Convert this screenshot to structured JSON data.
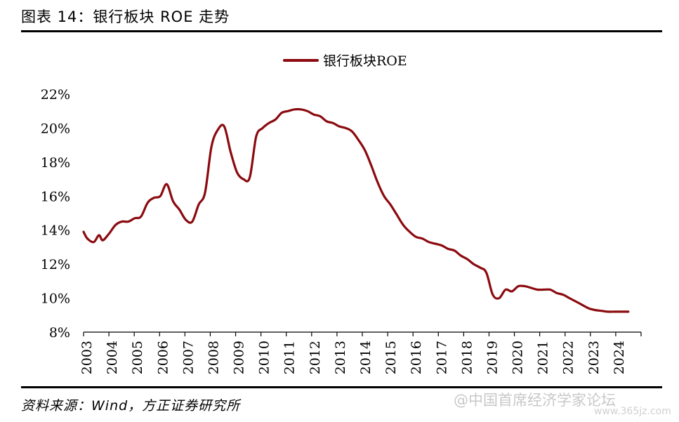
{
  "header": {
    "title": "图表 14：银行板块 ROE 走势"
  },
  "footer": {
    "source": "资料来源：Wind，方正证券研究所"
  },
  "watermark": {
    "text": "@中国首席经济学家论坛",
    "url": "www.365jz.com"
  },
  "chart_data": {
    "type": "line",
    "title": "图表 14：银行板块 ROE 走势",
    "xlabel": "",
    "ylabel": "",
    "legend_position": "top-center",
    "grid": false,
    "xlim": [
      2003.0,
      2024.8
    ],
    "ylim": [
      8,
      22
    ],
    "x_ticks": [
      "2003",
      "2004",
      "2005",
      "2006",
      "2007",
      "2008",
      "2009",
      "2010",
      "2011",
      "2012",
      "2013",
      "2014",
      "2015",
      "2016",
      "2017",
      "2018",
      "2019",
      "2020",
      "2021",
      "2022",
      "2023",
      "2024"
    ],
    "y_ticks": [
      "8%",
      "10%",
      "12%",
      "14%",
      "16%",
      "18%",
      "20%",
      "22%"
    ],
    "y_tick_values": [
      8,
      10,
      12,
      14,
      16,
      18,
      20,
      22
    ],
    "series": [
      {
        "name": "银行板块ROE",
        "color": "#8b0a0f",
        "points": [
          [
            2003.0,
            13.9
          ],
          [
            2003.15,
            13.5
          ],
          [
            2003.4,
            13.3
          ],
          [
            2003.6,
            13.7
          ],
          [
            2003.75,
            13.4
          ],
          [
            2004.0,
            13.8
          ],
          [
            2004.25,
            14.3
          ],
          [
            2004.5,
            14.5
          ],
          [
            2004.75,
            14.5
          ],
          [
            2005.0,
            14.7
          ],
          [
            2005.25,
            14.8
          ],
          [
            2005.5,
            15.6
          ],
          [
            2005.75,
            15.9
          ],
          [
            2006.0,
            16.0
          ],
          [
            2006.25,
            16.7
          ],
          [
            2006.5,
            15.7
          ],
          [
            2006.75,
            15.2
          ],
          [
            2007.0,
            14.6
          ],
          [
            2007.25,
            14.5
          ],
          [
            2007.5,
            15.5
          ],
          [
            2007.75,
            16.2
          ],
          [
            2008.0,
            18.9
          ],
          [
            2008.25,
            19.9
          ],
          [
            2008.5,
            20.1
          ],
          [
            2008.75,
            18.6
          ],
          [
            2009.0,
            17.4
          ],
          [
            2009.25,
            17.0
          ],
          [
            2009.5,
            17.1
          ],
          [
            2009.75,
            19.5
          ],
          [
            2010.0,
            20.0
          ],
          [
            2010.25,
            20.3
          ],
          [
            2010.5,
            20.5
          ],
          [
            2010.75,
            20.9
          ],
          [
            2011.0,
            21.0
          ],
          [
            2011.25,
            21.1
          ],
          [
            2011.5,
            21.1
          ],
          [
            2011.75,
            21.0
          ],
          [
            2012.0,
            20.8
          ],
          [
            2012.25,
            20.7
          ],
          [
            2012.5,
            20.4
          ],
          [
            2012.75,
            20.3
          ],
          [
            2013.0,
            20.1
          ],
          [
            2013.25,
            20.0
          ],
          [
            2013.5,
            19.8
          ],
          [
            2013.75,
            19.3
          ],
          [
            2014.0,
            18.7
          ],
          [
            2014.25,
            17.8
          ],
          [
            2014.5,
            16.8
          ],
          [
            2014.75,
            16.0
          ],
          [
            2015.0,
            15.5
          ],
          [
            2015.25,
            14.9
          ],
          [
            2015.5,
            14.3
          ],
          [
            2015.75,
            13.9
          ],
          [
            2016.0,
            13.6
          ],
          [
            2016.25,
            13.5
          ],
          [
            2016.5,
            13.3
          ],
          [
            2016.75,
            13.2
          ],
          [
            2017.0,
            13.1
          ],
          [
            2017.25,
            12.9
          ],
          [
            2017.5,
            12.8
          ],
          [
            2017.75,
            12.5
          ],
          [
            2018.0,
            12.3
          ],
          [
            2018.25,
            12.0
          ],
          [
            2018.5,
            11.8
          ],
          [
            2018.75,
            11.5
          ],
          [
            2019.0,
            10.2
          ],
          [
            2019.25,
            10.0
          ],
          [
            2019.5,
            10.5
          ],
          [
            2019.75,
            10.4
          ],
          [
            2020.0,
            10.7
          ],
          [
            2020.25,
            10.7
          ],
          [
            2020.5,
            10.6
          ],
          [
            2020.75,
            10.5
          ],
          [
            2021.0,
            10.5
          ],
          [
            2021.25,
            10.5
          ],
          [
            2021.5,
            10.3
          ],
          [
            2021.75,
            10.2
          ],
          [
            2022.0,
            10.0
          ],
          [
            2022.25,
            9.8
          ],
          [
            2022.5,
            9.6
          ],
          [
            2022.75,
            9.4
          ],
          [
            2023.0,
            9.3
          ],
          [
            2023.25,
            9.25
          ],
          [
            2023.5,
            9.2
          ],
          [
            2023.75,
            9.2
          ],
          [
            2024.0,
            9.2
          ],
          [
            2024.3,
            9.2
          ]
        ]
      }
    ]
  }
}
